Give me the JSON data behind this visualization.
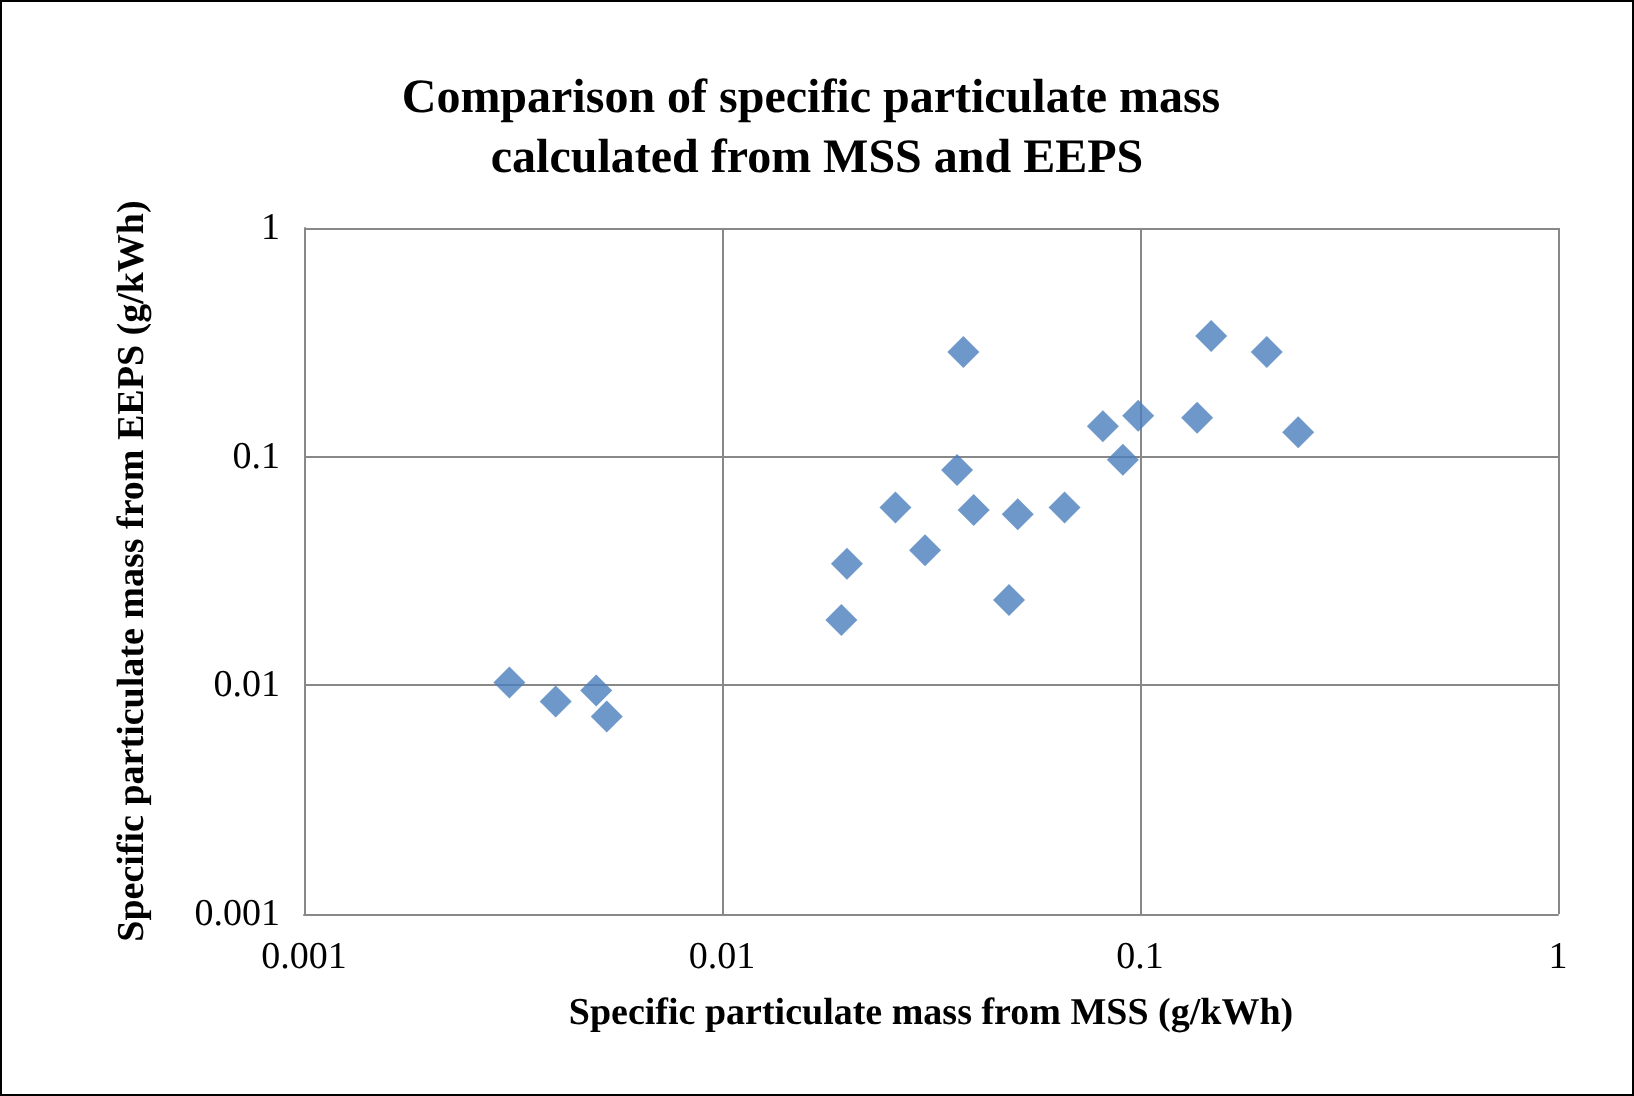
{
  "chart_data": {
    "type": "scatter",
    "title": "Comparison of specific particulate mass calculated from MSS and EEPS",
    "xlabel": "Specific particulate mass from MSS (g/kWh)",
    "ylabel": "Specific particulate mass from EEPS (g/kWh)",
    "log": "xy",
    "xlim": [
      0.001,
      1
    ],
    "ylim": [
      0.001,
      1
    ],
    "xticks": [
      0.001,
      0.01,
      0.1,
      1
    ],
    "yticks": [
      0.001,
      0.01,
      0.1,
      1
    ],
    "grid": true,
    "marker": "diamond",
    "series": [
      {
        "color": "#4a7ebb",
        "x": [
          0.0031,
          0.004,
          0.005,
          0.0053,
          0.0193,
          0.0199,
          0.026,
          0.0306,
          0.0365,
          0.0378,
          0.04,
          0.0486,
          0.051,
          0.066,
          0.0815,
          0.091,
          0.099,
          0.137,
          0.148,
          0.201,
          0.239
        ],
        "values": [
          0.0103,
          0.0085,
          0.0095,
          0.0073,
          0.0193,
          0.034,
          0.06,
          0.039,
          0.0875,
          0.287,
          0.0585,
          0.0236,
          0.056,
          0.06,
          0.136,
          0.097,
          0.151,
          0.148,
          0.337,
          0.287,
          0.128
        ]
      }
    ]
  }
}
